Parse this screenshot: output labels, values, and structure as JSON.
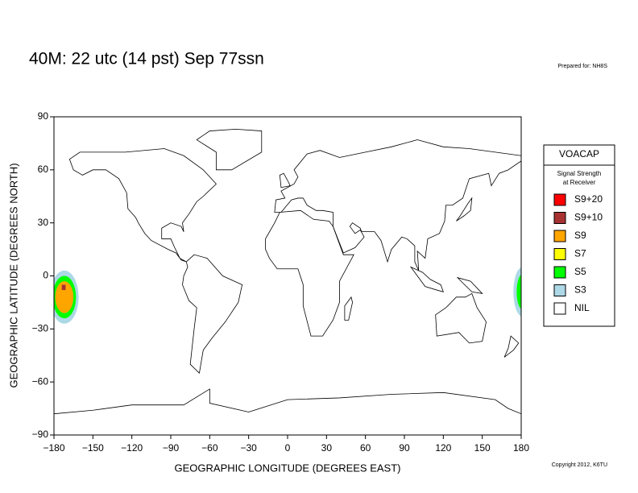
{
  "chart_data": {
    "type": "map",
    "title": "40M:  22 utc (14 pst) Sep 77ssn",
    "prepared_for": "Prepared for: NH8S",
    "copyright": "Copyright 2012, K6TU",
    "x_label": "GEOGRAPHIC LONGITUDE (DEGREES EAST)",
    "y_label": "GEOGRAPHIC LATITUDE (DEGREES NORTH)",
    "xlim": [
      -180,
      180
    ],
    "ylim": [
      -90,
      90
    ],
    "xticks": [
      {
        "value": -180,
        "label": "−180"
      },
      {
        "value": -150,
        "label": "−150"
      },
      {
        "value": -120,
        "label": "−120"
      },
      {
        "value": -90,
        "label": "−90"
      },
      {
        "value": -60,
        "label": "−60"
      },
      {
        "value": -30,
        "label": "−30"
      },
      0,
      30,
      60,
      90,
      120,
      150,
      180
    ],
    "yticks": [
      {
        "value": -90,
        "label": "−90"
      },
      {
        "value": -60,
        "label": "−60"
      },
      {
        "value": -30,
        "label": "−30"
      },
      0,
      30,
      60,
      90
    ],
    "legend": {
      "title": "VOACAP",
      "subtitle": [
        "Signal Strength",
        "at Receiver"
      ],
      "items": [
        {
          "name": "S9+20",
          "color": "#ff0000"
        },
        {
          "name": "S9+10",
          "color": "#a83232"
        },
        {
          "name": "S9",
          "color": "#ffa500"
        },
        {
          "name": "S7",
          "color": "#ffff00"
        },
        {
          "name": "S5",
          "color": "#00ff00"
        },
        {
          "name": "S3",
          "color": "#add8e6"
        },
        {
          "name": "NIL",
          "color": "#ffffff"
        }
      ]
    }
  }
}
